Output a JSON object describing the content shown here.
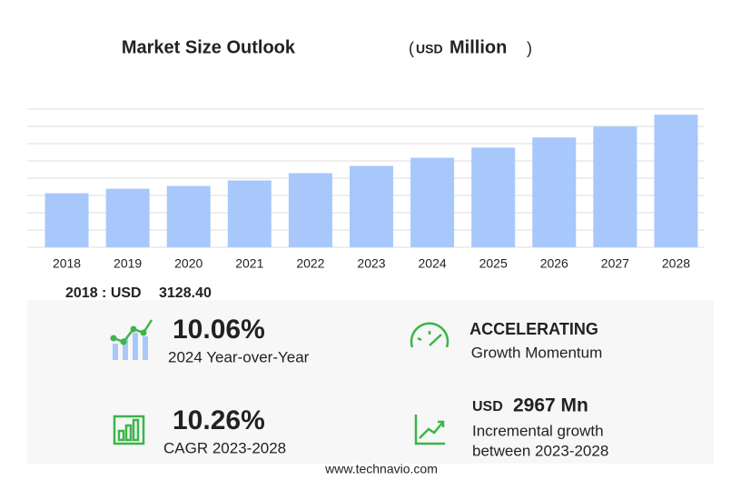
{
  "chart_data": {
    "type": "bar",
    "title": "Market Size Outlook",
    "title_unit": {
      "open": "(",
      "currency": "USD",
      "unit": "Million",
      "close": ")"
    },
    "categories": [
      "2018",
      "2019",
      "2020",
      "2021",
      "2022",
      "2023",
      "2024",
      "2025",
      "2026",
      "2027",
      "2028"
    ],
    "values": [
      3128.4,
      3390,
      3550,
      3870,
      4290,
      4711,
      5185,
      5770,
      6360,
      6990,
      7678
    ],
    "color": "#a8c8fc",
    "ylim": [
      0,
      8000
    ],
    "yticks": [
      0,
      1000,
      2000,
      3000,
      4000,
      5000,
      6000,
      7000,
      8000
    ],
    "grid": true
  },
  "stats": {
    "base_label": "2018 : USD",
    "base_value": "3128.40",
    "yoy_value": "10.06%",
    "yoy_label": "2024 Year-over-Year",
    "momentum_value": "ACCELERATING",
    "momentum_label": "Growth Momentum",
    "cagr_value": "10.26%",
    "cagr_label": "CAGR 2023-2028",
    "increment_currency": "USD",
    "increment_value": "2967 Mn",
    "increment_label_1": "Incremental growth",
    "increment_label_2": "between 2023-2028"
  },
  "footer": "www.technavio.com"
}
